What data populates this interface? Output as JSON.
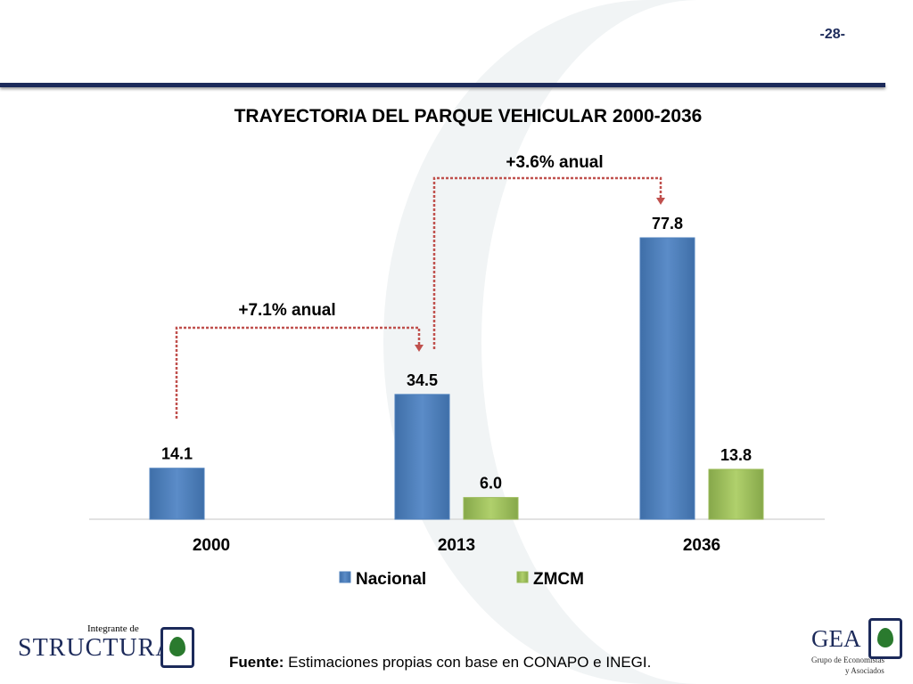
{
  "page_number": "-28-",
  "footer": {
    "source_label": "Fuente:",
    "source_text": " Estimaciones propias con base en CONAPO e INEGI.",
    "logo_left_small": "Integrante de",
    "logo_left_big": "STRUCTURA",
    "logo_right_big": "GEA",
    "logo_right_line1": "Grupo de Economistas",
    "logo_right_line2": "y Asociados"
  },
  "chart_data": {
    "type": "bar",
    "title": "TRAYECTORIA DEL PARQUE VEHICULAR 2000-2036",
    "categories": [
      "2000",
      "2013",
      "2036"
    ],
    "series": [
      {
        "name": "Nacional",
        "values": [
          14.1,
          34.5,
          77.8
        ],
        "color": "#4f81bd"
      },
      {
        "name": "ZMCM",
        "values": [
          null,
          6.0,
          13.8
        ],
        "color": "#9bbb59"
      }
    ],
    "data_labels": [
      [
        "14.1",
        "34.5",
        "77.8"
      ],
      [
        "",
        "6.0",
        "13.8"
      ]
    ],
    "annotations": [
      {
        "text": "+7.1% anual",
        "from": "2000",
        "to": "2013"
      },
      {
        "text": "+3.6% anual",
        "from": "2013",
        "to": "2036"
      }
    ],
    "ylim": [
      0,
      80
    ],
    "legend": "bottom",
    "grid": false,
    "xlabel": "",
    "ylabel": ""
  }
}
